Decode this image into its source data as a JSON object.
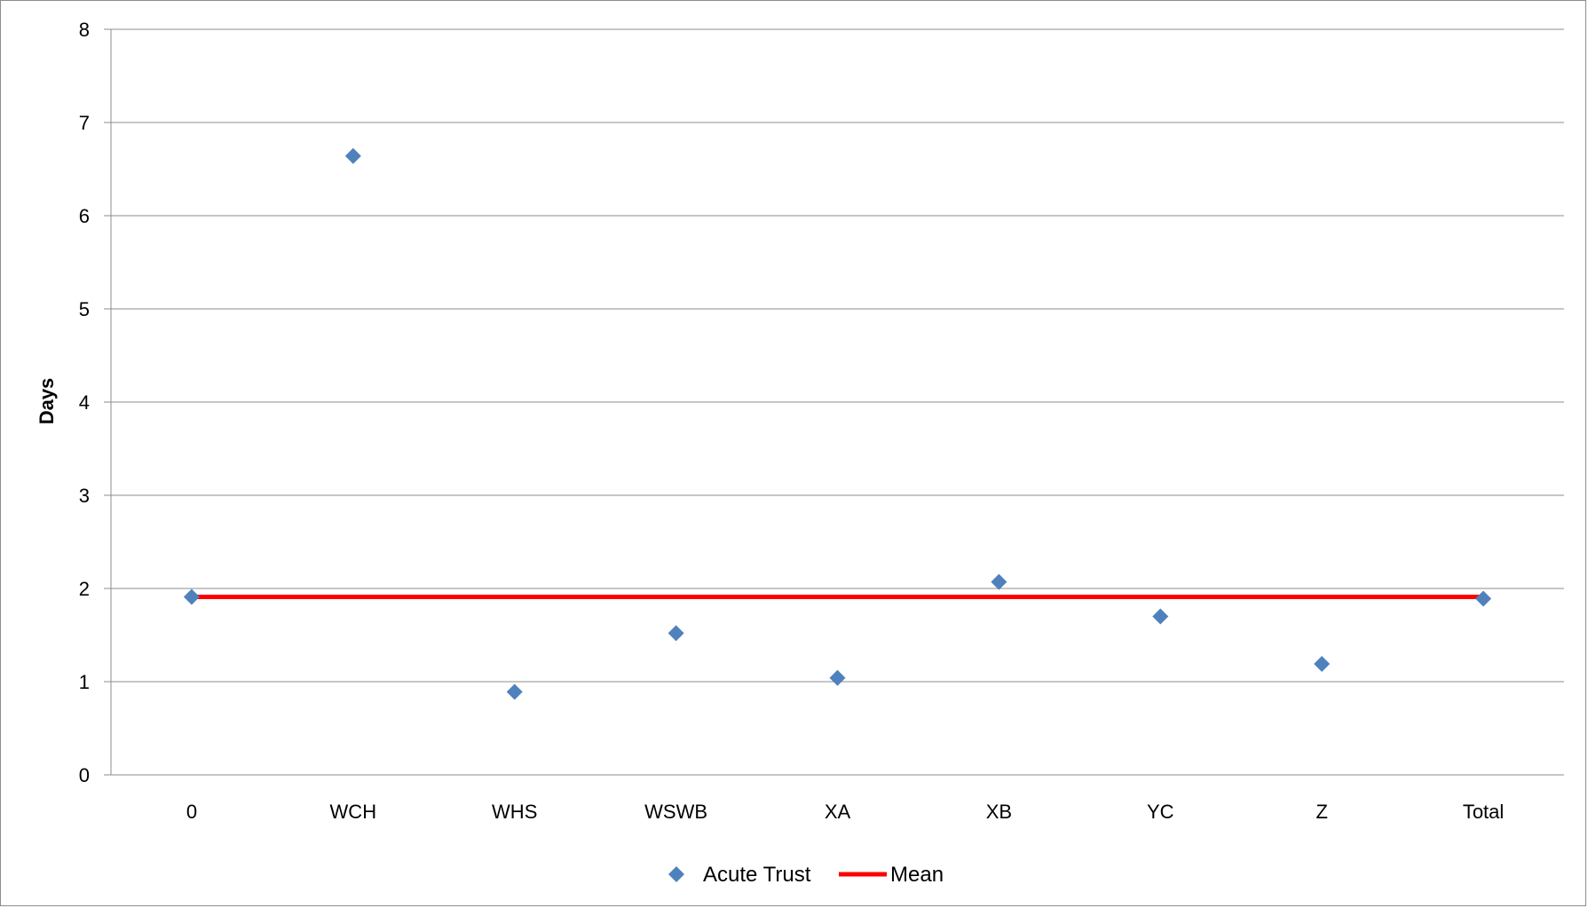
{
  "chart_data": {
    "type": "scatter",
    "categories": [
      "0",
      "WCH",
      "WHS",
      "WSWB",
      "XA",
      "XB",
      "YC",
      "Z",
      "Total"
    ],
    "series": [
      {
        "name": "Acute Trust",
        "kind": "scatter",
        "marker": "diamond",
        "color": "#4F81BD",
        "values": [
          1.91,
          6.64,
          0.89,
          1.52,
          1.04,
          2.07,
          1.7,
          1.19,
          1.89
        ]
      },
      {
        "name": "Mean",
        "kind": "line",
        "color": "#FF0000",
        "values": [
          1.91,
          1.91,
          1.91,
          1.91,
          1.91,
          1.91,
          1.91,
          1.91,
          1.91
        ]
      }
    ],
    "title": "",
    "xlabel": "",
    "ylabel": "Days",
    "ylim": [
      0,
      8
    ],
    "yticks": [
      "0",
      "1",
      "2",
      "3",
      "4",
      "5",
      "6",
      "7",
      "8"
    ],
    "grid": true,
    "legend_position": "bottom"
  }
}
